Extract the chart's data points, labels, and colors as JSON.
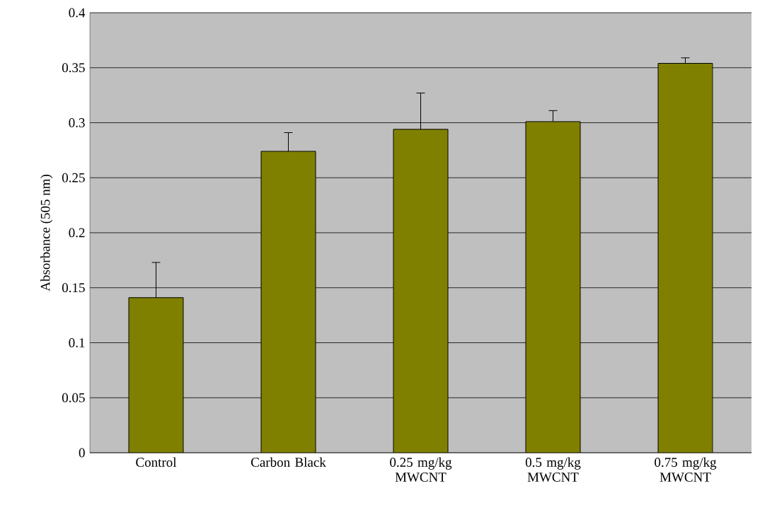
{
  "chart_data": {
    "type": "bar",
    "ylabel": "Absorbance (505 nm)",
    "categories": [
      "Control",
      "Carbon Black",
      "0.25 mg/kg MWCNT",
      "0.5 mg/kg MWCNT",
      "0.75 mg/kg MWCNT"
    ],
    "values": [
      0.141,
      0.274,
      0.294,
      0.301,
      0.354
    ],
    "errors": [
      0.032,
      0.017,
      0.033,
      0.01,
      0.005
    ],
    "color": "#808000",
    "ylim": [
      0,
      0.4
    ],
    "yticks": [
      0,
      0.05,
      0.1,
      0.15,
      0.2,
      0.25,
      0.3,
      0.35,
      0.4
    ],
    "grid": "y"
  }
}
